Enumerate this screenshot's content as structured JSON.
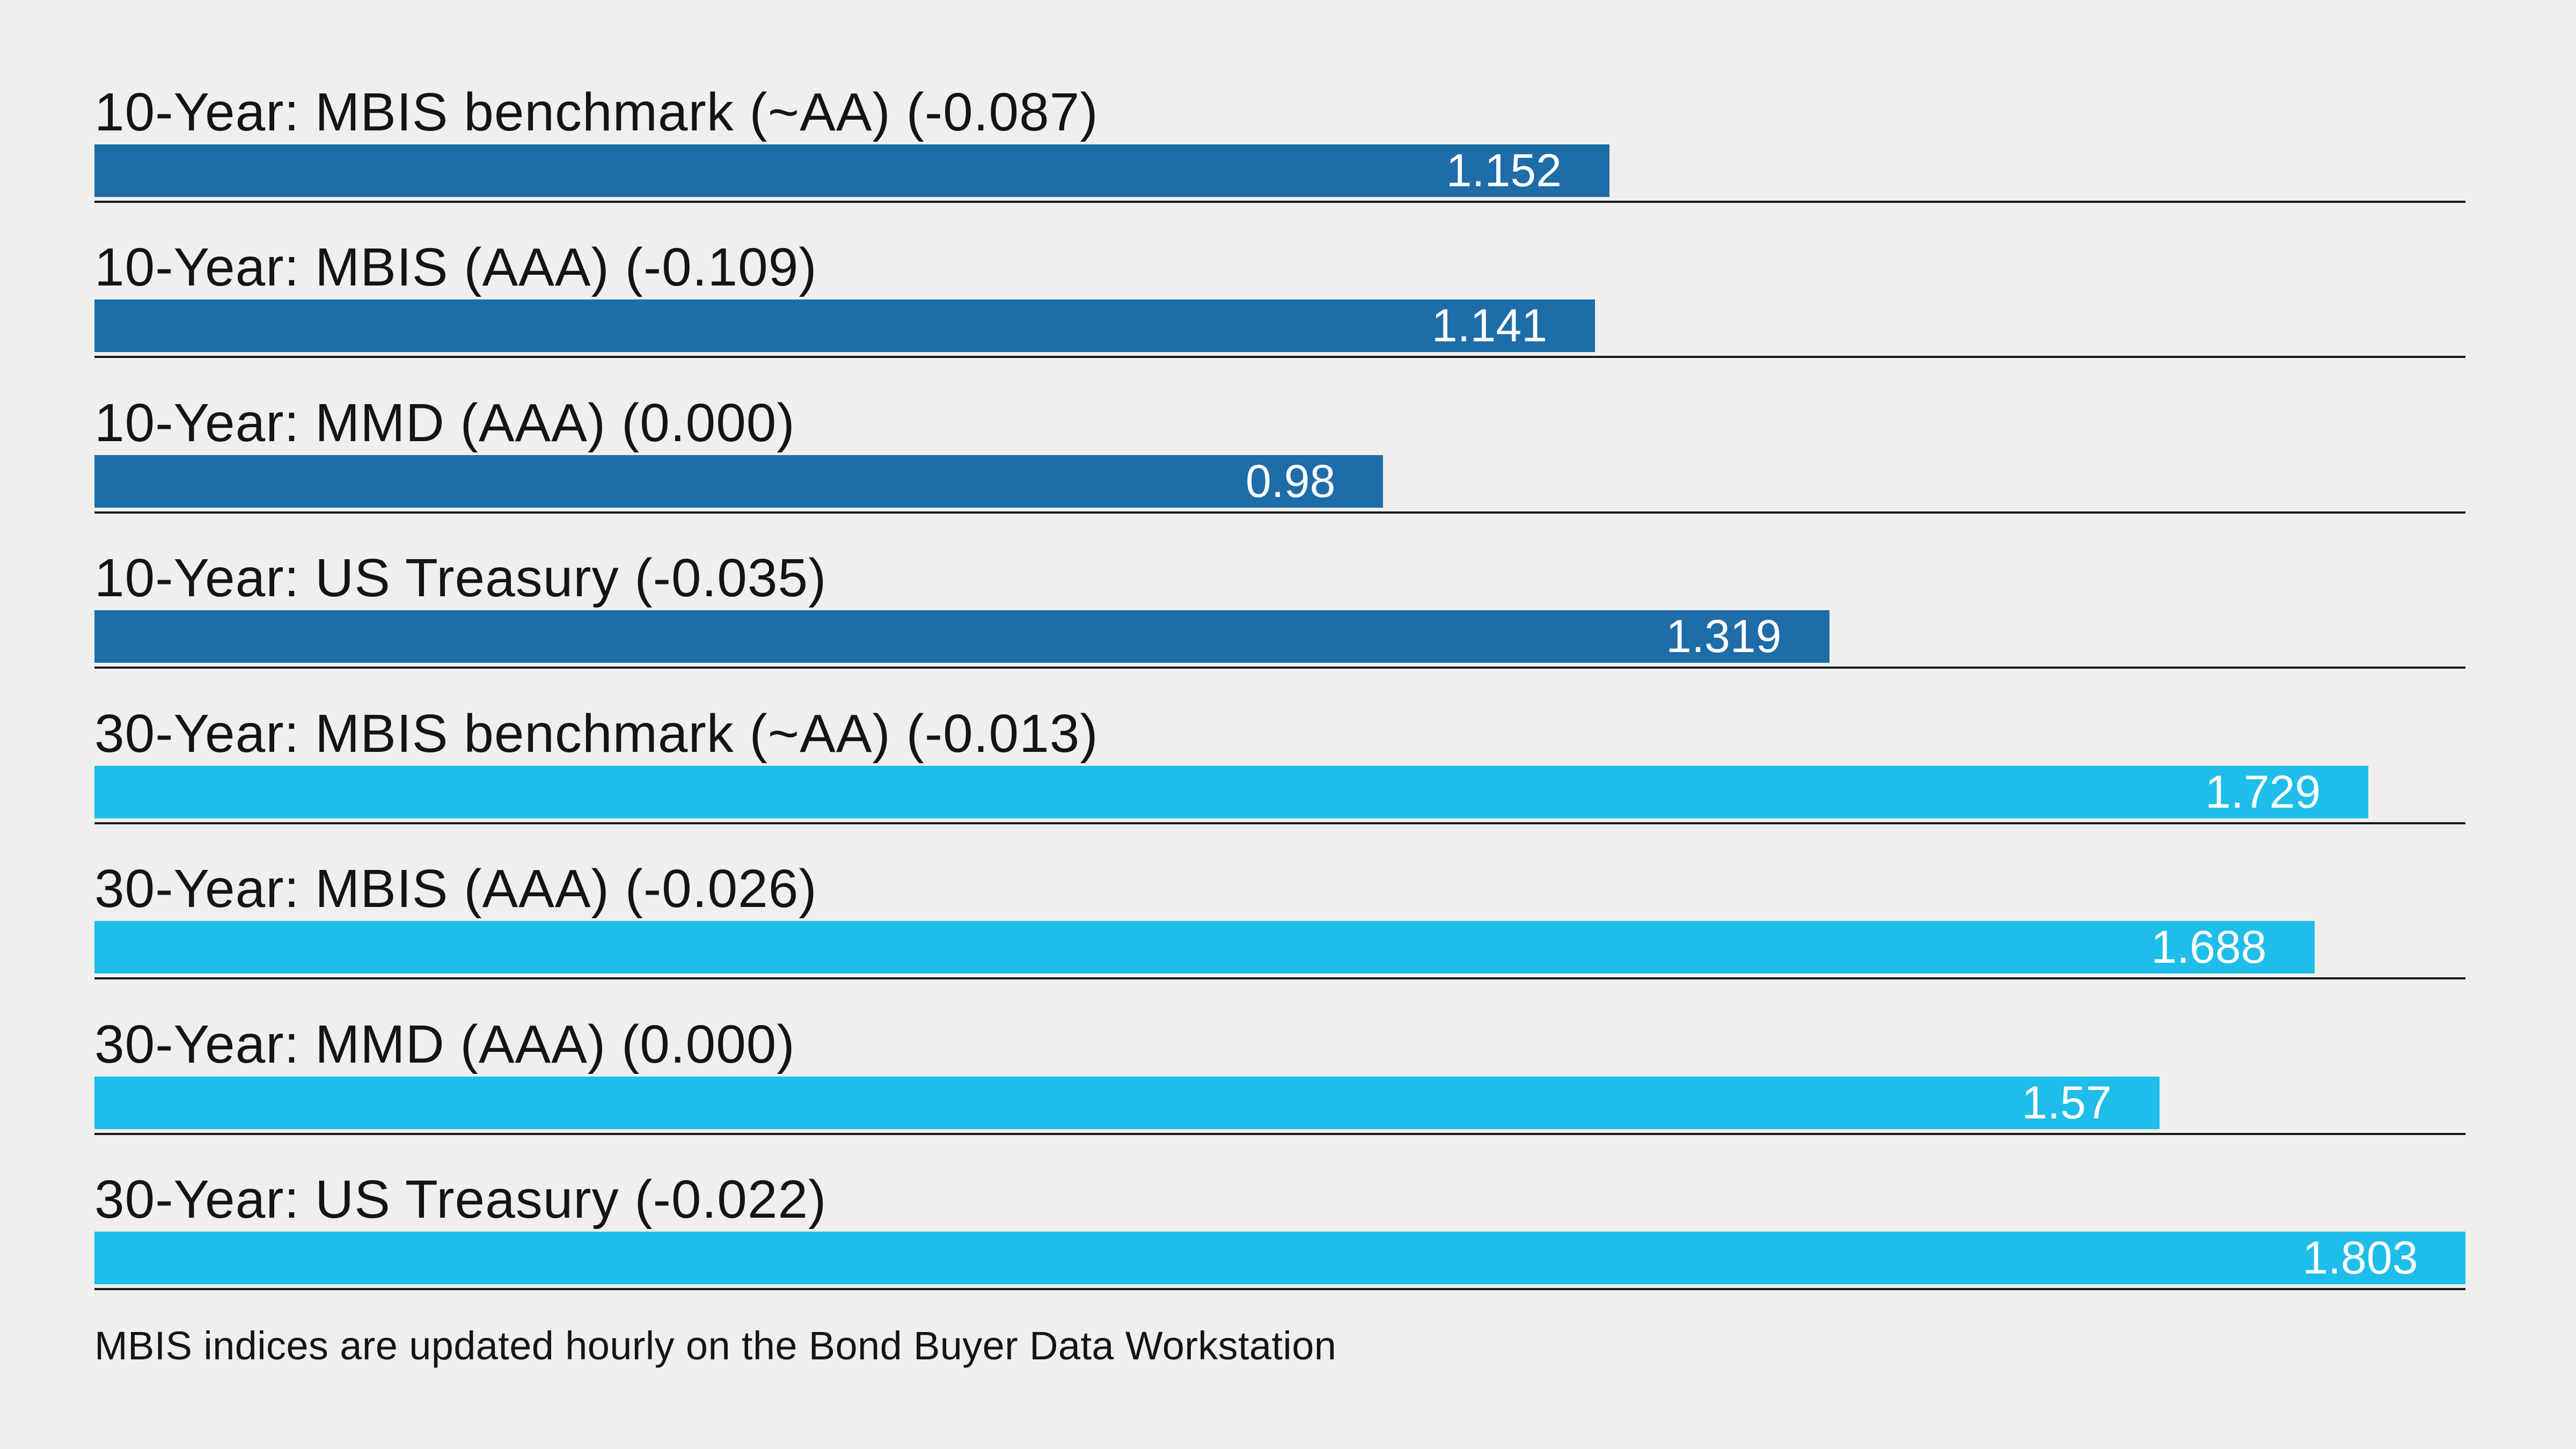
{
  "page": {
    "background_color": "#efefed",
    "separator_line_color": "#191919",
    "label_text_color": "#141414",
    "value_text_color": "#ffffff"
  },
  "chart_data": {
    "type": "bar",
    "orientation": "horizontal",
    "title": "",
    "xlabel": "",
    "ylabel": "",
    "xlim": [
      0,
      1.803
    ],
    "grid": "row-separator-lines-only",
    "legend": "none",
    "categories": [
      "10-Year: MBIS benchmark (~AA) (-0.087)",
      "10-Year: MBIS (AAA) (-0.109)",
      "10-Year: MMD (AAA) (0.000)",
      "10-Year: US Treasury (-0.035)",
      "30-Year: MBIS benchmark (~AA) (-0.013)",
      "30-Year: MBIS (AAA) (-0.026)",
      "30-Year: MMD (AAA) (0.000)",
      "30-Year: US Treasury (-0.022)"
    ],
    "values": [
      1.152,
      1.141,
      0.98,
      1.319,
      1.729,
      1.688,
      1.57,
      1.803
    ],
    "value_labels": [
      "1.152",
      "1.141",
      "0.98",
      "1.319",
      "1.729",
      "1.688",
      "1.57",
      "1.803"
    ],
    "daily_changes": [
      -0.087,
      -0.109,
      0.0,
      -0.035,
      -0.013,
      -0.026,
      0.0,
      -0.022
    ],
    "groups": [
      "10-year",
      "10-year",
      "10-year",
      "10-year",
      "30-year",
      "30-year",
      "30-year",
      "30-year"
    ],
    "bar_colors": {
      "10-year": "#1e6ca8",
      "30-year": "#1fbde9"
    },
    "footnote": "MBIS indices are updated hourly on the Bond Buyer Data Workstation"
  }
}
